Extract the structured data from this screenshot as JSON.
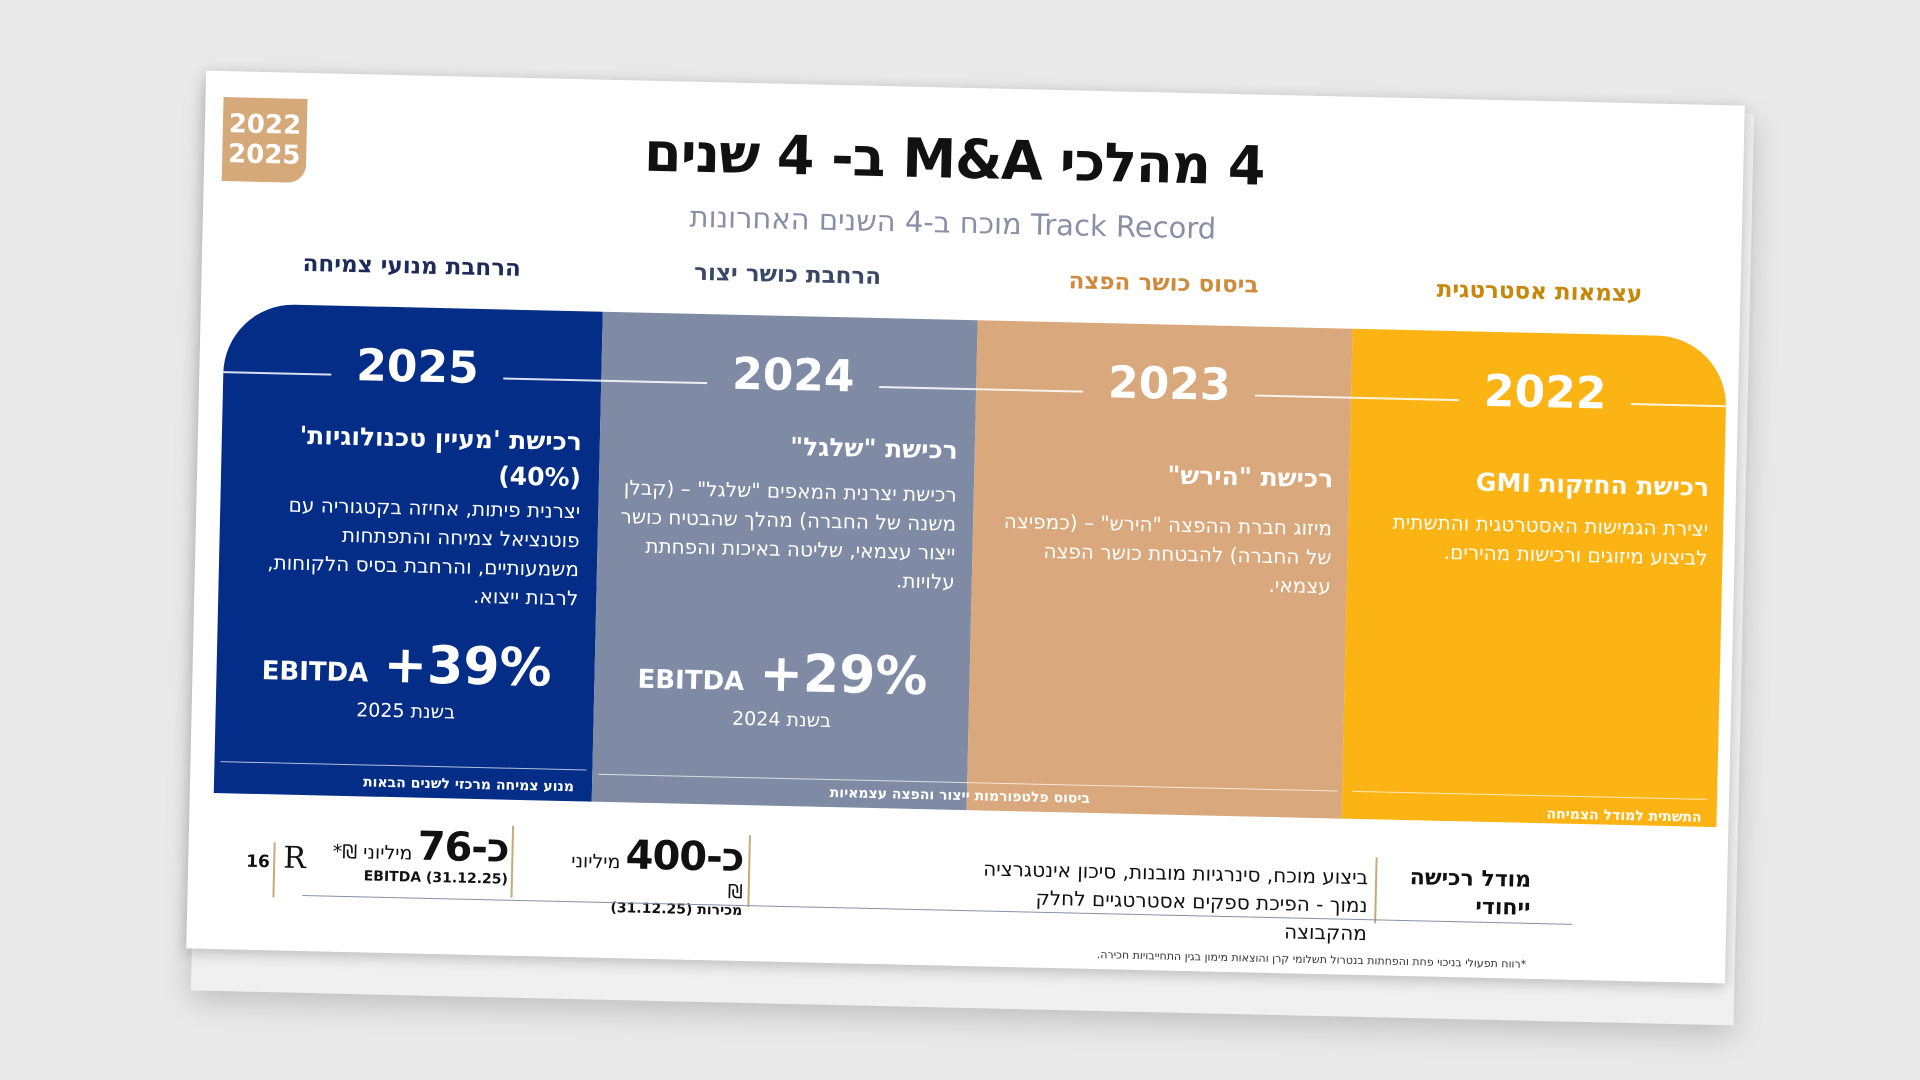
{
  "slide": {
    "badge": {
      "line1": "2022",
      "line2": "2025"
    },
    "title": "4 מהלכי M&A ב- 4 שנים",
    "subtitle": "Track Record מוכח ב-4 השנים האחרונות",
    "columns": [
      {
        "heading": "הרחבת מנועי צמיחה",
        "year": "2025",
        "acquisition": "רכישת 'מעיין טכנולוגיות' (40%)",
        "description": "יצרנית פיתות, אחיזה בקטגוריה עם פוטנציאל צמיחה והתפתחות משמעותיים, והרחבת בסיס הלקוחות, לרבות ייצוא.",
        "kpi_value": "+39%",
        "kpi_label": "EBITDA",
        "kpi_year": "בשנת 2025",
        "footer": "מנוע צמיחה מרכזי לשנים הבאות"
      },
      {
        "heading": "הרחבת כושר יצור",
        "year": "2024",
        "acquisition": "רכישת \"שלגל\"",
        "description": "רכישת יצרנית המאפים \"שלגל\" – (קבלן משנה של החברה) מהלך שהבטיח כושר ייצור עצמאי, שליטה באיכות והפחתת עלויות.",
        "kpi_value": "+29%",
        "kpi_label": "EBITDA",
        "kpi_year": "בשנת 2024",
        "footer": "ביסוס פלטפורמות ייצור והפצה עצמאיות"
      },
      {
        "heading": "ביסוס כושר הפצה",
        "year": "2023",
        "acquisition": "רכישת \"הירש\"",
        "description": "מיזוג חברת ההפצה \"הירש\" – (כמפיצה של החברה) להבטחת כושר הפצה עצמאי."
      },
      {
        "heading": "עצמאות אסטרטגית",
        "year": "2022",
        "acquisition": "רכישת החזקות GMI",
        "description": "יצירת הגמישות האסטרטגית והתשתית לביצוע מיזוגים ורכישות מהירים.",
        "footer": "התשתית למודל הצמיחה"
      }
    ],
    "stats": [
      {
        "value": "כ-76",
        "unit": "מיליוני ₪*",
        "sub": "EBITDA (31.12.25)"
      },
      {
        "value": "כ-400",
        "unit": "מיליוני ₪",
        "sub": "מכירות (31.12.25)"
      }
    ],
    "model": {
      "title": "מודל רכישה ייחודי",
      "text": "ביצוע מוכח, סינרגיות מובנות, סיכון אינטגרציה נמוך - הפיכת ספקים אסטרטגיים לחלק מהקבוצה"
    },
    "page_number": "16",
    "logo": "R",
    "footnote": "*רווח תפעולי בניכוי פחת והפחתות בנטרול תשלומי קרן והוצאות מימון בגין התחייבויות חכירה.",
    "colors": {
      "navy": "#032d86",
      "slate": "#7f8aa4",
      "tan": "#d9a87c",
      "amber": "#fcb414",
      "heading_navy": "#1d2b5a",
      "heading_slate": "#3b4766",
      "heading_tan": "#d08a3e",
      "heading_amber": "#c8860a"
    }
  }
}
